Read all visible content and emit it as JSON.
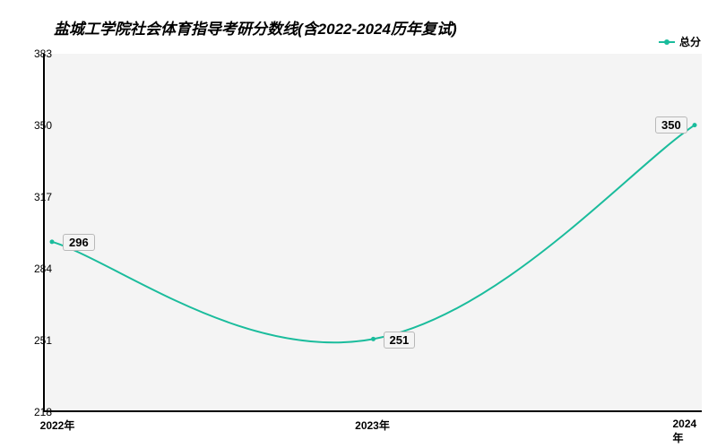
{
  "chart": {
    "type": "line",
    "title": "盐城工学院社会体育指导考研分数线(含2022-2024历年复试)",
    "title_fontsize": 17,
    "title_color": "#000000",
    "background_color": "#ffffff",
    "plot_background_color": "#f4f4f4",
    "axis_color": "#000000",
    "legend": {
      "label": "总分",
      "color": "#1abc9c",
      "position": "top-right"
    },
    "x": {
      "categories": [
        "2022年",
        "2023年",
        "2024年"
      ],
      "label_fontsize": 12
    },
    "y": {
      "min": 218,
      "max": 383,
      "ticks": [
        218,
        251,
        284,
        317,
        350,
        383
      ],
      "label_fontsize": 12
    },
    "series": {
      "name": "总分",
      "values": [
        296,
        251,
        350
      ],
      "data_labels": [
        "296",
        "251",
        "350"
      ],
      "line_color": "#1abc9c",
      "line_width": 2,
      "marker_color": "#1abc9c",
      "marker_size": 5,
      "smooth": true
    },
    "data_label_style": {
      "fontsize": 13,
      "bg": "#f4f4f4",
      "border": "#b8b8b8"
    }
  }
}
